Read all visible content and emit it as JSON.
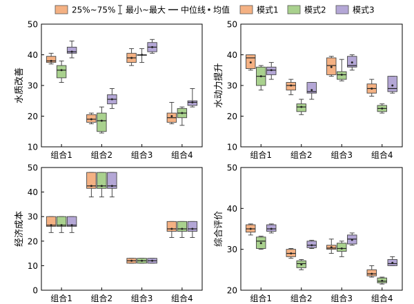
{
  "legend": {
    "items": [
      {
        "symbol": "box",
        "color": "#f4b183",
        "label": "25%~75%"
      },
      {
        "symbol": "whisker",
        "label": "最小~最大"
      },
      {
        "symbol": "line",
        "label": "中位线"
      },
      {
        "symbol": "dot",
        "label": "均值"
      },
      {
        "symbol": "box",
        "color": "#f4b183",
        "label": "模式1"
      },
      {
        "symbol": "box",
        "color": "#a9d18e",
        "label": "模式2"
      },
      {
        "symbol": "box",
        "color": "#b4a7d6",
        "label": "模式3"
      }
    ]
  },
  "series_colors": {
    "模式1": "#f4b183",
    "模式2": "#a9d18e",
    "模式3": "#b4a7d6"
  },
  "chart_data": [
    {
      "type": "box",
      "ylabel": "水质改善",
      "categories": [
        "组合1",
        "组合2",
        "组合3",
        "组合4"
      ],
      "ylim": [
        10,
        50
      ],
      "yticks": [
        10,
        20,
        30,
        40,
        50
      ],
      "grid": false,
      "series": [
        {
          "name": "模式1",
          "boxes": [
            {
              "min": 37,
              "q1": 37.5,
              "median": 38,
              "q3": 39.5,
              "max": 40.5,
              "mean": 38
            },
            {
              "min": 17.5,
              "q1": 18,
              "median": 19,
              "q3": 20.5,
              "max": 21,
              "mean": 19
            },
            {
              "min": 36.5,
              "q1": 37.5,
              "median": 39,
              "q3": 40.5,
              "max": 42,
              "mean": 39
            },
            {
              "min": 17.5,
              "q1": 18,
              "median": 19.5,
              "q3": 21,
              "max": 24.5,
              "mean": 20
            }
          ]
        },
        {
          "name": "模式2",
          "boxes": [
            {
              "min": 31,
              "q1": 32.5,
              "median": 35,
              "q3": 36.5,
              "max": 38,
              "mean": 35
            },
            {
              "min": 14.5,
              "q1": 15,
              "median": 18.5,
              "q3": 21,
              "max": 23,
              "mean": 18.5
            },
            {
              "min": 37.5,
              "q1": 40,
              "median": 40,
              "q3": 40,
              "max": 42,
              "mean": 40
            },
            {
              "min": 17,
              "q1": 19.5,
              "median": 21,
              "q3": 22.5,
              "max": 23,
              "mean": 21
            }
          ]
        },
        {
          "name": "模式3",
          "boxes": [
            {
              "min": 39,
              "q1": 40.5,
              "median": 41,
              "q3": 42.5,
              "max": 44.5,
              "mean": 41
            },
            {
              "min": 22.5,
              "q1": 24,
              "median": 25.5,
              "q3": 27,
              "max": 29,
              "mean": 25.5
            },
            {
              "min": 40.5,
              "q1": 41,
              "median": 42.5,
              "q3": 44,
              "max": 45,
              "mean": 42.5
            },
            {
              "min": 23,
              "q1": 23.5,
              "median": 24.5,
              "q3": 25,
              "max": 29,
              "mean": 24.5
            }
          ]
        }
      ]
    },
    {
      "type": "box",
      "ylabel": "水动力提升",
      "categories": [
        "组合1",
        "组合2",
        "组合3",
        "组合4"
      ],
      "ylim": [
        10,
        50
      ],
      "yticks": [
        10,
        20,
        30,
        40,
        50
      ],
      "grid": false,
      "series": [
        {
          "name": "模式1",
          "boxes": [
            {
              "min": 35,
              "q1": 35.5,
              "median": 39,
              "q3": 40,
              "max": 40,
              "mean": 37.5
            },
            {
              "min": 27,
              "q1": 28.5,
              "median": 30,
              "q3": 31,
              "max": 32,
              "mean": 30
            },
            {
              "min": 33,
              "q1": 33.5,
              "median": 36.5,
              "q3": 39,
              "max": 39.5,
              "mean": 36
            },
            {
              "min": 26.5,
              "q1": 27.5,
              "median": 29,
              "q3": 30.5,
              "max": 32,
              "mean": 29
            }
          ]
        },
        {
          "name": "模式2",
          "boxes": [
            {
              "min": 28.5,
              "q1": 30,
              "median": 33,
              "q3": 36,
              "max": 36.5,
              "mean": 33
            },
            {
              "min": 20.5,
              "q1": 21.5,
              "median": 23,
              "q3": 24,
              "max": 25.5,
              "mean": 23
            },
            {
              "min": 31.5,
              "q1": 32,
              "median": 33.5,
              "q3": 34.5,
              "max": 38.5,
              "mean": 33.5
            },
            {
              "min": 21,
              "q1": 21.5,
              "median": 22.5,
              "q3": 23.5,
              "max": 24,
              "mean": 22.5
            }
          ]
        },
        {
          "name": "模式3",
          "boxes": [
            {
              "min": 32,
              "q1": 33.5,
              "median": 35,
              "q3": 36,
              "max": 37.5,
              "mean": 35
            },
            {
              "min": 25.5,
              "q1": 27.5,
              "median": 28,
              "q3": 31,
              "max": 31,
              "mean": 28.5
            },
            {
              "min": 35,
              "q1": 36,
              "median": 36.5,
              "q3": 39.5,
              "max": 40,
              "mean": 37.5
            },
            {
              "min": 27.5,
              "q1": 28,
              "median": 29,
              "q3": 33,
              "max": 33,
              "mean": 30
            }
          ]
        }
      ]
    },
    {
      "type": "box",
      "ylabel": "经济成本",
      "categories": [
        "组合1",
        "组合2",
        "组合3",
        "组合4"
      ],
      "ylim": [
        0,
        50
      ],
      "yticks": [
        0,
        10,
        20,
        30,
        40,
        50
      ],
      "grid": false,
      "series": [
        {
          "name": "模式1",
          "boxes": [
            {
              "min": 23.5,
              "q1": 26,
              "median": 26.5,
              "q3": 30,
              "max": 30,
              "mean": 26.5
            },
            {
              "min": 38,
              "q1": 41.5,
              "median": 42.5,
              "q3": 48,
              "max": 48,
              "mean": 42.5
            },
            {
              "min": 11,
              "q1": 11,
              "median": 12,
              "q3": 13,
              "max": 13,
              "mean": 12
            },
            {
              "min": 21.5,
              "q1": 24,
              "median": 25,
              "q3": 28,
              "max": 28,
              "mean": 25
            }
          ]
        },
        {
          "name": "模式2",
          "boxes": [
            {
              "min": 23.5,
              "q1": 26,
              "median": 26.5,
              "q3": 30,
              "max": 30,
              "mean": 26.5
            },
            {
              "min": 38,
              "q1": 41.5,
              "median": 42.5,
              "q3": 48,
              "max": 48,
              "mean": 42.5
            },
            {
              "min": 11,
              "q1": 11,
              "median": 12,
              "q3": 13,
              "max": 13,
              "mean": 12
            },
            {
              "min": 21.5,
              "q1": 24,
              "median": 25,
              "q3": 28,
              "max": 28,
              "mean": 25
            }
          ]
        },
        {
          "name": "模式3",
          "boxes": [
            {
              "min": 23.5,
              "q1": 26,
              "median": 26.5,
              "q3": 30,
              "max": 30,
              "mean": 26.5
            },
            {
              "min": 38,
              "q1": 41.5,
              "median": 42.5,
              "q3": 48,
              "max": 48,
              "mean": 42.5
            },
            {
              "min": 11,
              "q1": 11,
              "median": 12,
              "q3": 13,
              "max": 13,
              "mean": 12
            },
            {
              "min": 21.5,
              "q1": 24,
              "median": 25,
              "q3": 28,
              "max": 28,
              "mean": 25
            }
          ]
        }
      ]
    },
    {
      "type": "box",
      "ylabel": "综合评价",
      "categories": [
        "组合1",
        "组合2",
        "组合3",
        "组合4"
      ],
      "ylim": [
        20,
        50
      ],
      "yticks": [
        20,
        30,
        40,
        50
      ],
      "grid": false,
      "series": [
        {
          "name": "模式1",
          "boxes": [
            {
              "min": 33.5,
              "q1": 34.2,
              "median": 35,
              "q3": 36,
              "max": 36.2,
              "mean": 35
            },
            {
              "min": 27.8,
              "q1": 28.2,
              "median": 29,
              "q3": 30,
              "max": 30.2,
              "mean": 29
            },
            {
              "min": 29,
              "q1": 30,
              "median": 30.3,
              "q3": 31,
              "max": 32.5,
              "mean": 30.5
            },
            {
              "min": 23.2,
              "q1": 23.5,
              "median": 24,
              "q3": 25,
              "max": 26,
              "mean": 24
            }
          ]
        },
        {
          "name": "模式2",
          "boxes": [
            {
              "min": 30,
              "q1": 30.2,
              "median": 32,
              "q3": 33,
              "max": 33.2,
              "mean": 31.5
            },
            {
              "min": 25,
              "q1": 25.5,
              "median": 26.5,
              "q3": 27.2,
              "max": 27.5,
              "mean": 26.3
            },
            {
              "min": 28.2,
              "q1": 29.5,
              "median": 30.2,
              "q3": 31.5,
              "max": 32,
              "mean": 30.2
            },
            {
              "min": 21.5,
              "q1": 21.8,
              "median": 22.2,
              "q3": 23,
              "max": 23.2,
              "mean": 22.3
            }
          ]
        },
        {
          "name": "模式3",
          "boxes": [
            {
              "min": 34,
              "q1": 34.4,
              "median": 35,
              "q3": 36,
              "max": 36.2,
              "mean": 35
            },
            {
              "min": 30.2,
              "q1": 30.4,
              "median": 31,
              "q3": 32,
              "max": 32.2,
              "mean": 31
            },
            {
              "min": 31,
              "q1": 31.3,
              "median": 32.5,
              "q3": 33.5,
              "max": 34,
              "mean": 32.3
            },
            {
              "min": 26,
              "q1": 26,
              "median": 26.5,
              "q3": 27.5,
              "max": 28.2,
              "mean": 26.7
            }
          ]
        }
      ]
    }
  ]
}
